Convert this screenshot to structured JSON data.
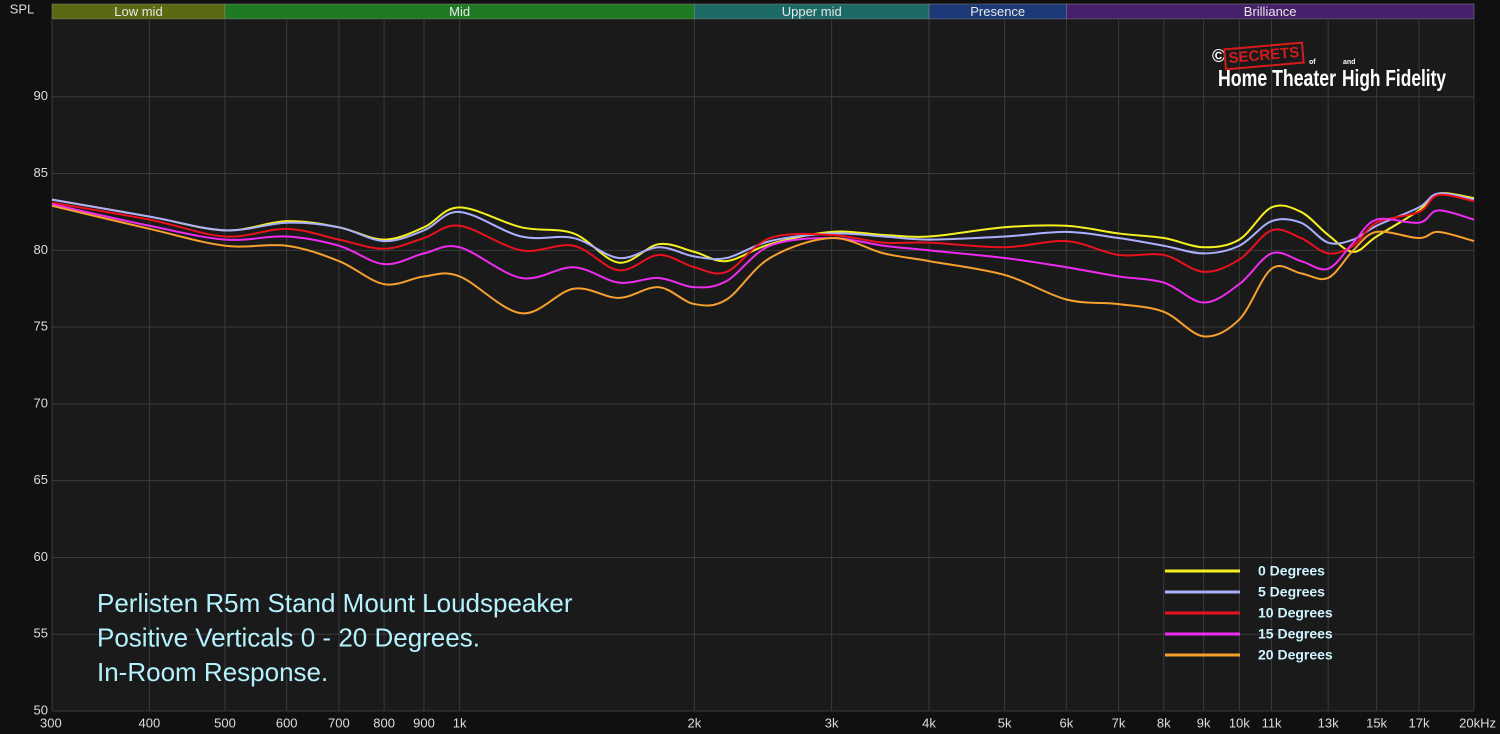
{
  "chart_data": {
    "type": "line",
    "ylabel": "SPL",
    "xscale": "log",
    "xlim": [
      300,
      20000
    ],
    "ylim": [
      50,
      95
    ],
    "yticks": [
      50,
      55,
      60,
      65,
      70,
      75,
      80,
      85,
      90
    ],
    "xticks": [
      300,
      400,
      500,
      600,
      700,
      800,
      900,
      {
        "value": 1000,
        "label": "1k"
      },
      {
        "value": 2000,
        "label": "2k"
      },
      {
        "value": 3000,
        "label": "3k"
      },
      {
        "value": 4000,
        "label": "4k"
      },
      {
        "value": 5000,
        "label": "5k"
      },
      {
        "value": 6000,
        "label": "6k"
      },
      {
        "value": 7000,
        "label": "7k"
      },
      {
        "value": 8000,
        "label": "8k"
      },
      {
        "value": 9000,
        "label": "9k"
      },
      {
        "value": 10000,
        "label": "10k"
      },
      {
        "value": 11000,
        "label": "11k"
      },
      {
        "value": 13000,
        "label": "13k"
      },
      {
        "value": 15000,
        "label": "15k"
      },
      {
        "value": 17000,
        "label": "17k"
      },
      {
        "value": 20000,
        "label": "20kHz"
      }
    ],
    "grid": true,
    "legend": "lower right",
    "bands": [
      {
        "name": "Low mid",
        "from": 300,
        "to": 500,
        "color": "#5a6a12"
      },
      {
        "name": "Mid",
        "from": 500,
        "to": 2000,
        "color": "#1f7a24"
      },
      {
        "name": "Upper mid",
        "from": 2000,
        "to": 4000,
        "color": "#1c6a66"
      },
      {
        "name": "Presence",
        "from": 4000,
        "to": 6000,
        "color": "#1c3a78"
      },
      {
        "name": "Brilliance",
        "from": 6000,
        "to": 20000,
        "color": "#46206a"
      }
    ],
    "annotations": [
      "Perlisten R5m Stand Mount Loudspeaker",
      "Positive Verticals 0 - 20 Degrees.",
      "In-Room Response."
    ],
    "logo": {
      "copyright": "©",
      "secrets": "SECRETS",
      "of": "of",
      "left": "Home Theater",
      "and": "and",
      "right": "High Fidelity"
    },
    "x": [
      300,
      400,
      500,
      600,
      700,
      800,
      900,
      1000,
      1200,
      1400,
      1600,
      1800,
      2000,
      2200,
      2500,
      3000,
      3500,
      4000,
      5000,
      6000,
      7000,
      8000,
      9000,
      10000,
      11000,
      12000,
      13000,
      14000,
      15000,
      17000,
      18000,
      20000
    ],
    "series": [
      {
        "name": "0 Degrees",
        "color": "#f4f022",
        "values": [
          83.3,
          82.2,
          81.3,
          81.9,
          81.5,
          80.7,
          81.5,
          82.8,
          81.5,
          81.1,
          79.2,
          80.4,
          79.9,
          79.3,
          80.4,
          81.2,
          81.0,
          80.9,
          81.5,
          81.6,
          81.1,
          80.8,
          80.2,
          80.7,
          82.8,
          82.5,
          81.0,
          79.9,
          80.9,
          82.6,
          83.7,
          83.4
        ]
      },
      {
        "name": "5 Degrees",
        "color": "#aab0ff",
        "values": [
          83.3,
          82.2,
          81.3,
          81.8,
          81.5,
          80.6,
          81.3,
          82.5,
          80.9,
          80.8,
          79.5,
          80.2,
          79.6,
          79.5,
          80.6,
          81.1,
          80.9,
          80.7,
          80.9,
          81.2,
          80.8,
          80.3,
          79.8,
          80.3,
          81.9,
          81.8,
          80.5,
          80.7,
          81.6,
          82.8,
          83.7,
          83.3
        ]
      },
      {
        "name": "10 Degrees",
        "color": "#e8121e",
        "values": [
          83.1,
          82.0,
          80.9,
          81.4,
          80.7,
          80.1,
          80.8,
          81.6,
          80.0,
          80.3,
          78.7,
          79.7,
          78.9,
          78.6,
          80.8,
          81.0,
          80.5,
          80.5,
          80.2,
          80.6,
          79.7,
          79.7,
          78.6,
          79.4,
          81.3,
          80.8,
          79.8,
          80.3,
          81.8,
          82.5,
          83.6,
          83.2
        ]
      },
      {
        "name": "15 Degrees",
        "color": "#ee2cf0",
        "values": [
          83.0,
          81.6,
          80.7,
          80.9,
          80.3,
          79.1,
          79.8,
          80.2,
          78.2,
          78.9,
          77.9,
          78.2,
          77.6,
          78.0,
          80.3,
          80.8,
          80.3,
          80.0,
          79.5,
          78.9,
          78.3,
          77.9,
          76.6,
          77.8,
          79.8,
          79.3,
          78.8,
          80.5,
          82.0,
          81.8,
          82.6,
          82.0
        ]
      },
      {
        "name": "20 Degrees",
        "color": "#f7a030",
        "values": [
          82.9,
          81.4,
          80.3,
          80.3,
          79.3,
          77.8,
          78.3,
          78.3,
          75.9,
          77.5,
          76.9,
          77.6,
          76.5,
          76.8,
          79.5,
          80.8,
          79.8,
          79.3,
          78.4,
          76.8,
          76.5,
          76.0,
          74.4,
          75.5,
          78.8,
          78.5,
          78.2,
          80.0,
          81.2,
          80.8,
          81.2,
          80.6
        ]
      }
    ]
  }
}
